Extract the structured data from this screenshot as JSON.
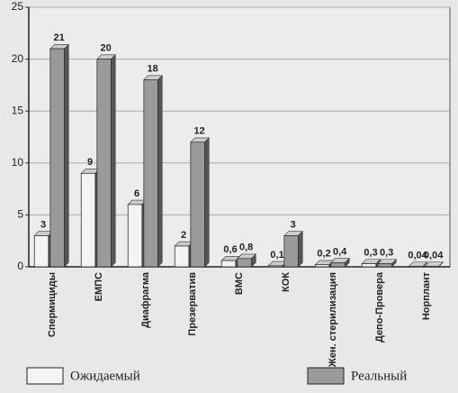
{
  "chart_data": {
    "type": "bar",
    "categories": [
      "Спермициды",
      "ЕМПС",
      "Диафрагма",
      "Презерватив",
      "ВМС",
      "КОК",
      "Жен. стерилизация",
      "Депо-Провера",
      "Норплант"
    ],
    "series": [
      {
        "name": "Ожидаемый",
        "color": "#f4f4f4",
        "values": [
          3,
          9,
          6,
          2,
          0.6,
          0.1,
          0.2,
          0.3,
          0.04
        ],
        "value_labels": [
          "3",
          "9",
          "6",
          "2",
          "0,6",
          "0,1",
          "0,2",
          "0,3",
          "0,04"
        ]
      },
      {
        "name": "Реальный",
        "color": "#9a9a9a",
        "values": [
          21,
          20,
          18,
          12,
          0.8,
          3,
          0.4,
          0.3,
          0.04
        ],
        "value_labels": [
          "21",
          "20",
          "18",
          "12",
          "0,8",
          "3",
          "0,4",
          "0,3",
          "0,04"
        ]
      }
    ],
    "ylim": [
      0,
      25
    ],
    "yticks": [
      0,
      5,
      10,
      15,
      20,
      25
    ],
    "grid": true
  }
}
